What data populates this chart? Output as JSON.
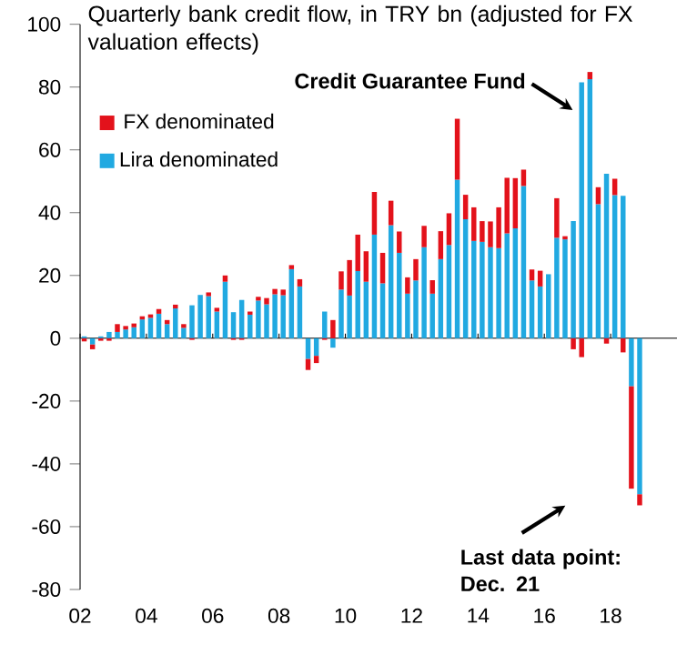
{
  "chart_data": {
    "type": "bar",
    "stacked": true,
    "title": "Quarterly bank credit flow, in TRY bn (adjusted for FX valuation effects)",
    "x": [
      2002.125,
      2002.375,
      2002.625,
      2002.875,
      2003.125,
      2003.375,
      2003.625,
      2003.875,
      2004.125,
      2004.375,
      2004.625,
      2004.875,
      2005.125,
      2005.375,
      2005.625,
      2005.875,
      2006.125,
      2006.375,
      2006.625,
      2006.875,
      2007.125,
      2007.375,
      2007.625,
      2007.875,
      2008.125,
      2008.375,
      2008.625,
      2008.875,
      2009.125,
      2009.375,
      2009.625,
      2009.875,
      2010.125,
      2010.375,
      2010.625,
      2010.875,
      2011.125,
      2011.375,
      2011.625,
      2011.875,
      2012.125,
      2012.375,
      2012.625,
      2012.875,
      2013.125,
      2013.375,
      2013.625,
      2013.875,
      2014.125,
      2014.375,
      2014.625,
      2014.875,
      2015.125,
      2015.375,
      2015.625,
      2015.875,
      2016.125,
      2016.375,
      2016.625,
      2016.875,
      2017.125,
      2017.375,
      2017.625,
      2017.875,
      2018.125,
      2018.375,
      2018.625,
      2018.875
    ],
    "series": [
      {
        "name": "Lira denominated",
        "color": "#21a9e1",
        "values": [
          0.6,
          -2,
          0.6,
          2,
          2,
          2.8,
          3.5,
          6,
          6.5,
          7.8,
          4.5,
          9.5,
          3.3,
          10.5,
          13.8,
          13.4,
          8.5,
          18,
          8.3,
          12.2,
          7.5,
          12,
          10.8,
          14,
          13.7,
          22,
          16.5,
          -6.6,
          -5.6,
          8.5,
          -3,
          15.5,
          13.6,
          21.4,
          18,
          33,
          17.5,
          36,
          27.2,
          14.2,
          18.4,
          29,
          14.2,
          25.2,
          29.7,
          50.5,
          37.9,
          31,
          30.7,
          29,
          28.7,
          33.4,
          35,
          48.5,
          18.4,
          16.5,
          20.4,
          32,
          31.5,
          37.3,
          81.5,
          82.5,
          42.7,
          52.4,
          45.6,
          45.4,
          -15.3,
          -49.7
        ]
      },
      {
        "name": "FX denominated",
        "color": "#e3121b",
        "values": [
          -1,
          -1.5,
          -0.8,
          -0.8,
          2.5,
          1.1,
          1.2,
          1,
          1.1,
          1.5,
          1.3,
          1.2,
          1.2,
          -0.5,
          0,
          1.2,
          1.2,
          2,
          -0.5,
          -0.5,
          1,
          1.2,
          2,
          1.7,
          1.8,
          1.3,
          2.3,
          -3.5,
          -2.3,
          -0.5,
          5.8,
          5.8,
          11.3,
          11.6,
          9.7,
          13.6,
          9.7,
          7.8,
          6.8,
          5.2,
          6.8,
          6.8,
          4.3,
          8.9,
          10.1,
          19.4,
          7.8,
          10.7,
          6.6,
          8.2,
          13,
          17.7,
          16,
          5.2,
          3.5,
          5,
          0,
          12.6,
          1,
          -3.5,
          -6,
          2.3,
          5.4,
          -1.7,
          5.2,
          -4.5,
          -32.6,
          -3.5
        ]
      }
    ],
    "xlim": [
      2002,
      2020
    ],
    "xticks": [
      {
        "value": 2002,
        "label": "02"
      },
      {
        "value": 2004,
        "label": "04"
      },
      {
        "value": 2006,
        "label": "06"
      },
      {
        "value": 2008,
        "label": "08"
      },
      {
        "value": 2010,
        "label": "10"
      },
      {
        "value": 2012,
        "label": "12"
      },
      {
        "value": 2014,
        "label": "14"
      },
      {
        "value": 2016,
        "label": "16"
      },
      {
        "value": 2018,
        "label": "18"
      }
    ],
    "ylim": [
      -80,
      100
    ],
    "yticks": [
      -80,
      -60,
      -40,
      -20,
      0,
      20,
      40,
      60,
      80,
      100
    ],
    "legend": "top left",
    "annotations": [
      {
        "text": "Credit Guarantee Fund",
        "x": 2017.125,
        "y": 81.5
      },
      {
        "text": "Last data point: Dec. 21",
        "x": 2018.875,
        "y": -53.2
      }
    ]
  }
}
